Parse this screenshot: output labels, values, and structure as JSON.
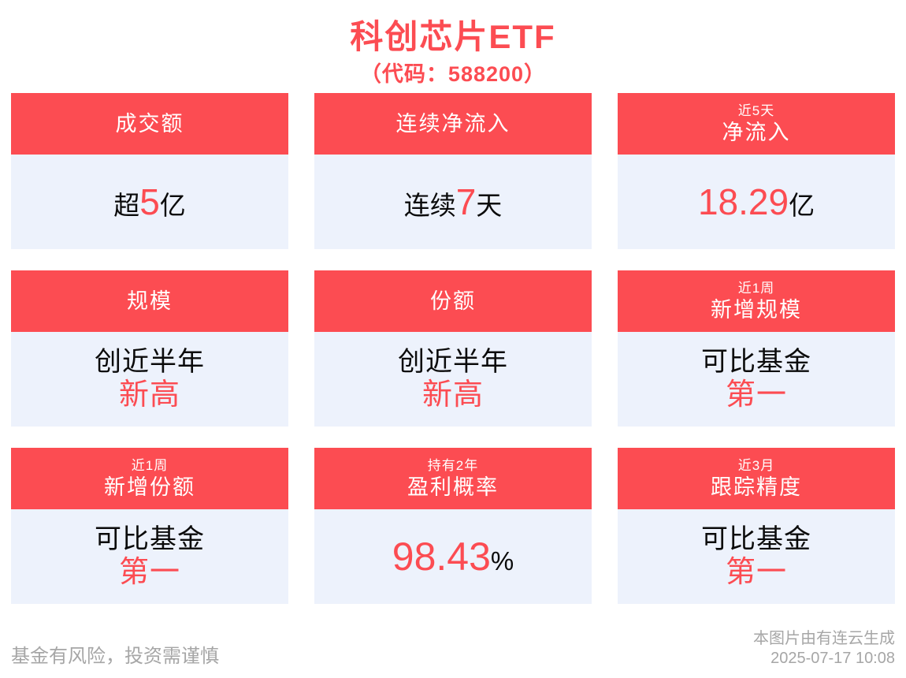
{
  "title": "科创芯片ETF",
  "subtitle": "（代码：588200）",
  "cards": [
    {
      "header": {
        "main": "成交额"
      },
      "body": {
        "pre": "超",
        "accent": "5",
        "post": "亿"
      }
    },
    {
      "header": {
        "main": "连续净流入"
      },
      "body": {
        "pre": "连续",
        "accent": "7",
        "post": "天"
      }
    },
    {
      "header": {
        "small": "近5天",
        "main": "净流入"
      },
      "body": {
        "accent": "18.29",
        "post": "亿"
      }
    },
    {
      "header": {
        "main": "规模"
      },
      "body": {
        "line1": "创近半年",
        "line2": "新高"
      }
    },
    {
      "header": {
        "main": "份额"
      },
      "body": {
        "line1": "创近半年",
        "line2": "新高"
      }
    },
    {
      "header": {
        "small": "近1周",
        "main": "新增规模"
      },
      "body": {
        "line1": "可比基金",
        "line2": "第一"
      }
    },
    {
      "header": {
        "small": "近1周",
        "main": "新增份额"
      },
      "body": {
        "line1": "可比基金",
        "line2": "第一"
      }
    },
    {
      "header": {
        "small": "持有2年",
        "main": "盈利概率"
      },
      "body": {
        "accent": "98.43",
        "post": "%"
      }
    },
    {
      "header": {
        "small": "近3月",
        "main": "跟踪精度"
      },
      "body": {
        "line1": "可比基金",
        "line2": "第一"
      }
    }
  ],
  "footer": {
    "disclaimer": "基金有风险，投资需谨慎",
    "credit": "本图片由有连云生成",
    "timestamp": "2025-07-17 10:08"
  },
  "colors": {
    "accent_red": "#FC4C52",
    "header_text": "#FFFFFF",
    "card_body_bg": "#EDF2FC",
    "value_text": "#0B0B0B",
    "footer_gray": "#A6A6A6"
  }
}
